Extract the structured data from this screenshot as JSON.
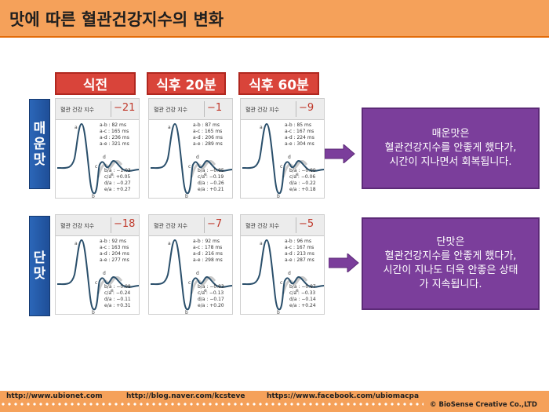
{
  "title": "맛에 따른 혈관건강지수의 변화",
  "columns": [
    "식전",
    "식후 20분",
    "식후 60분"
  ],
  "rows": [
    {
      "label": [
        "매",
        "운",
        "맛"
      ],
      "cards": [
        {
          "header_label": "혈관 건강 지수",
          "score": "−21",
          "times": [
            "a-b : 82 ms",
            "a-c : 165 ms",
            "a-d : 236 ms",
            "a-e : 321 ms"
          ],
          "ratios": [
            "b/a : −1.03",
            "c/a : +0.05",
            "d/a : −0.27",
            "e/a : +0.27"
          ]
        },
        {
          "header_label": "혈관 건강 지수",
          "score": "−1",
          "times": [
            "a-b : 87 ms",
            "a-c : 165 ms",
            "a-d : 206 ms",
            "a-e : 289 ms"
          ],
          "ratios": [
            "b/a : −0.85",
            "c/a : −0.19",
            "d/a : −0.26",
            "e/a : +0.21"
          ]
        },
        {
          "header_label": "혈관 건강 지수",
          "score": "−9",
          "times": [
            "a-b : 85 ms",
            "a-c : 167 ms",
            "a-d : 224 ms",
            "a-e : 304 ms"
          ],
          "ratios": [
            "b/a : −0.89",
            "c/a : −0.06",
            "d/a : −0.22",
            "e/a : +0.18"
          ]
        }
      ],
      "result": [
        "매운맛은",
        "혈관건강지수를 안좋게 했다가,",
        "시간이 지나면서 회복됩니다."
      ]
    },
    {
      "label": [
        "단",
        "맛"
      ],
      "cards": [
        {
          "header_label": "혈관 건강 지수",
          "score": "−18",
          "times": [
            "a-b : 92 ms",
            "a-c : 163 ms",
            "a-d : 204 ms",
            "a-e : 277 ms"
          ],
          "ratios": [
            "b/a : −0.98",
            "c/a : −0.24",
            "d/a : −0.11",
            "e/a : +0.31"
          ]
        },
        {
          "header_label": "혈관 건강 지수",
          "score": "−7",
          "times": [
            "a-b : 92 ms",
            "a-c : 178 ms",
            "a-d : 216 ms",
            "a-e : 298 ms"
          ],
          "ratios": [
            "b/a : −0.83",
            "c/a : −0.13",
            "d/a : −0.17",
            "e/a : +0.20"
          ]
        },
        {
          "header_label": "혈관 건강 지수",
          "score": "−5",
          "times": [
            "a-b : 96 ms",
            "a-c : 167 ms",
            "a-d : 213 ms",
            "a-e : 287 ms"
          ],
          "ratios": [
            "b/a : −0.87",
            "c/a : −0.33",
            "d/a : −0.14",
            "e/a : +0.24"
          ]
        }
      ],
      "result": [
        "단맛은",
        "혈관건강지수를 안좋게 했다가,",
        "시간이 지나도 더욱 안좋은 상태",
        "가 지속됩니다."
      ]
    }
  ],
  "peak_labels": [
    "a",
    "b",
    "c",
    "d",
    "e"
  ],
  "footer": {
    "links": [
      "http://www.ubionet.com",
      "http://blog.naver.com/kcsteve",
      "https://www.facebook.com/ubiomacpa"
    ],
    "copyright": "© BioSense Creative Co.,LTD"
  },
  "colors": {
    "accent_orange": "#f5a15a",
    "column_red": "#d9443a",
    "row_blue": "#2b66b8",
    "result_purple": "#7b3e9b",
    "score_red": "#c0392b"
  }
}
